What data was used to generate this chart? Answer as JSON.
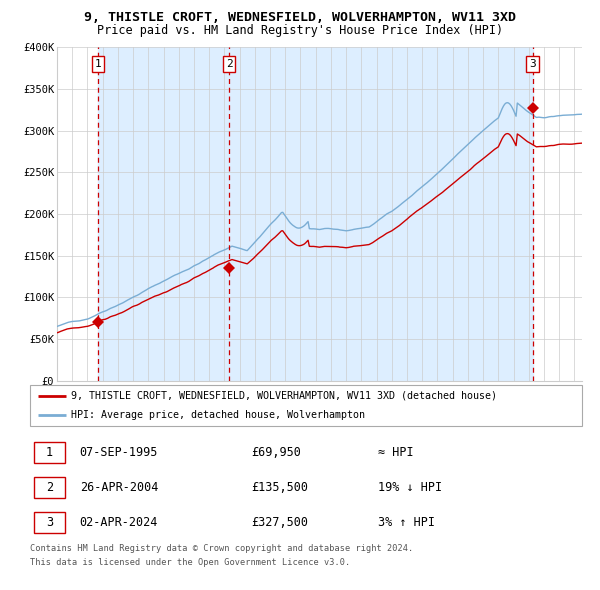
{
  "title": "9, THISTLE CROFT, WEDNESFIELD, WOLVERHAMPTON, WV11 3XD",
  "subtitle": "Price paid vs. HM Land Registry's House Price Index (HPI)",
  "sales": [
    {
      "date_num": 1995.68,
      "price": 69950,
      "label": "1",
      "date_str": "07-SEP-1995"
    },
    {
      "date_num": 2004.32,
      "price": 135500,
      "label": "2",
      "date_str": "26-APR-2004"
    },
    {
      "date_num": 2024.25,
      "price": 327500,
      "label": "3",
      "date_str": "02-APR-2024"
    }
  ],
  "sale_notes": [
    "≈ HPI",
    "19% ↓ HPI",
    "3% ↑ HPI"
  ],
  "hpi_line_color": "#7aadd4",
  "price_line_color": "#cc0000",
  "sale_marker_color": "#cc0000",
  "vline_color": "#cc0000",
  "background_shaded_color": "#ddeeff",
  "grid_color": "#cccccc",
  "ylim": [
    0,
    400000
  ],
  "xlim_start": 1993.0,
  "xlim_end": 2027.5,
  "legend_label_red": "9, THISTLE CROFT, WEDNESFIELD, WOLVERHAMPTON, WV11 3XD (detached house)",
  "legend_label_blue": "HPI: Average price, detached house, Wolverhampton",
  "footnote1": "Contains HM Land Registry data © Crown copyright and database right 2024.",
  "footnote2": "This data is licensed under the Open Government Licence v3.0."
}
